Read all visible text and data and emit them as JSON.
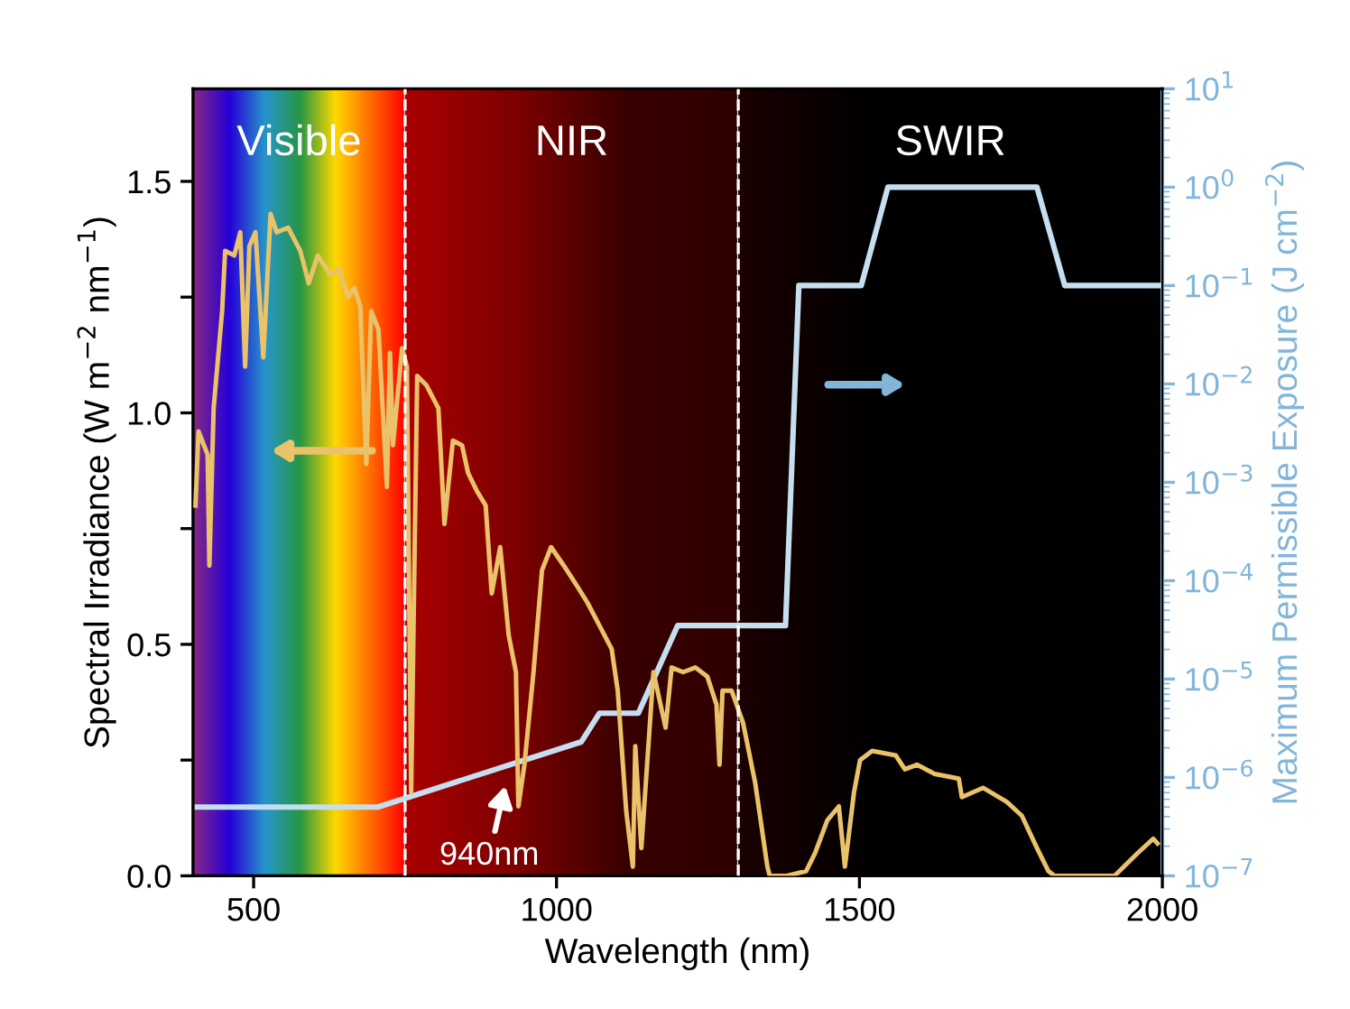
{
  "chart_data": {
    "type": "line",
    "xlabel": "Wavelength (nm)",
    "ylabel": "Spectral Irradiance (W m$^{−2}$ nm$^{−1}$)",
    "y2label": "Maximum Permissible Exposure (J cm$^{−2}$)",
    "xlim": [
      400,
      2000
    ],
    "xticks": [
      500,
      1000,
      1500,
      2000
    ],
    "ylim": [
      0,
      1.7
    ],
    "yticks": [
      {
        "value": 0,
        "label": "0.0"
      },
      {
        "value": 0.25,
        "label": null
      },
      0.5,
      {
        "value": 0.75,
        "label": null
      },
      {
        "value": 1,
        "label": "1.0"
      },
      {
        "value": 1.25,
        "label": null
      },
      1.5
    ],
    "y2lim": [
      1e-07,
      10
    ],
    "y2ticks": [
      {
        "value": 1e-07,
        "label": "10$^{−7}$"
      },
      {
        "value": 1e-06,
        "label": "10$^{−6}$"
      },
      {
        "value": 1e-05,
        "label": "10$^{−5}$"
      },
      {
        "value": 0.0001,
        "label": "10$^{−4}$"
      },
      {
        "value": 0.001,
        "label": "10$^{−3}$"
      },
      {
        "value": 0.01,
        "label": "10$^{−2}$"
      },
      {
        "value": 0.1,
        "label": "10$^{−1}$"
      },
      {
        "value": 1,
        "label": "10$^{0}$"
      },
      {
        "value": 10,
        "label": "10$^{1}$"
      }
    ],
    "log": "y2",
    "grid": false,
    "legend": false,
    "marker": "none",
    "line_style": "solid",
    "series": [
      {
        "color": "#eac26a",
        "x": [
          404,
          409,
          424,
          427,
          434,
          448,
          453,
          468,
          478,
          486,
          493,
          503,
          516,
          528,
          538,
          557,
          577,
          591,
          606,
          626,
          641,
          656,
          666,
          676,
          686,
          694,
          706,
          720,
          725,
          730,
          745,
          753,
          760,
          770,
          785,
          805,
          815,
          829,
          844,
          854,
          869,
          883,
          893,
          907,
          921,
          933,
          937,
          947,
          962,
          976,
          991,
          1012,
          1032,
          1051,
          1071,
          1091,
          1101,
          1115,
          1126,
          1130,
          1140,
          1150,
          1160,
          1180,
          1190,
          1209,
          1229,
          1249,
          1264,
          1269,
          1274,
          1289,
          1308,
          1328,
          1348,
          1352,
          1380,
          1412,
          1427,
          1447,
          1466,
          1476,
          1491,
          1501,
          1521,
          1560,
          1575,
          1595,
          1624,
          1664,
          1669,
          1704,
          1743,
          1768,
          1793,
          1812,
          1822,
          1921,
          1960,
          1985,
          1992
        ],
        "values": [
          0.8,
          0.96,
          0.91,
          0.67,
          1.01,
          1.22,
          1.35,
          1.34,
          1.39,
          1.1,
          1.36,
          1.39,
          1.12,
          1.43,
          1.39,
          1.4,
          1.35,
          1.28,
          1.34,
          1.3,
          1.31,
          1.25,
          1.27,
          1.23,
          0.89,
          1.22,
          1.18,
          0.84,
          1.13,
          0.93,
          1.14,
          1.1,
          0.18,
          1.08,
          1.06,
          1.01,
          0.76,
          0.94,
          0.93,
          0.87,
          0.83,
          0.8,
          0.61,
          0.71,
          0.52,
          0.44,
          0.15,
          0.24,
          0.44,
          0.66,
          0.71,
          0.67,
          0.63,
          0.59,
          0.54,
          0.49,
          0.4,
          0.14,
          0.02,
          0.28,
          0.06,
          0.25,
          0.44,
          0.32,
          0.45,
          0.44,
          0.45,
          0.43,
          0.37,
          0.24,
          0.4,
          0.4,
          0.33,
          0.2,
          0.02,
          0,
          0,
          0.01,
          0.05,
          0.12,
          0.15,
          0.02,
          0.18,
          0.25,
          0.27,
          0.26,
          0.23,
          0.24,
          0.22,
          0.21,
          0.17,
          0.19,
          0.16,
          0.13,
          0.06,
          0.01,
          0,
          0,
          0.05,
          0.08,
          0.07
        ]
      },
      {
        "color": "#c5dff0",
        "axis": "y2",
        "x": [
          400,
          705,
          1041,
          1071,
          1135,
          1200,
          1378,
          1400,
          1503,
          1547,
          1793,
          1839,
          2000
        ],
        "values": [
          5e-07,
          5e-07,
          2.3e-06,
          4.5e-06,
          4.5e-06,
          3.5e-05,
          3.5e-05,
          0.1,
          0.1,
          1,
          1,
          0.1,
          0.1
        ]
      }
    ],
    "ref_lines": [
      {
        "axis": "x",
        "value": 750,
        "color": "#ffffff",
        "line_style": "dashed"
      },
      {
        "axis": "x",
        "value": 1300,
        "color": "#ffffff",
        "line_style": "dashed"
      }
    ],
    "bands": [
      {
        "axis": "x",
        "from": 400,
        "to": 750,
        "label": "Visible"
      },
      {
        "axis": "x",
        "from": 750,
        "to": 1300,
        "label": "NIR"
      },
      {
        "axis": "x",
        "from": 1300,
        "to": 2000,
        "label": "SWIR"
      }
    ],
    "annotations": [
      {
        "text": "940nm",
        "x": 918,
        "y": 0.21
      }
    ]
  }
}
